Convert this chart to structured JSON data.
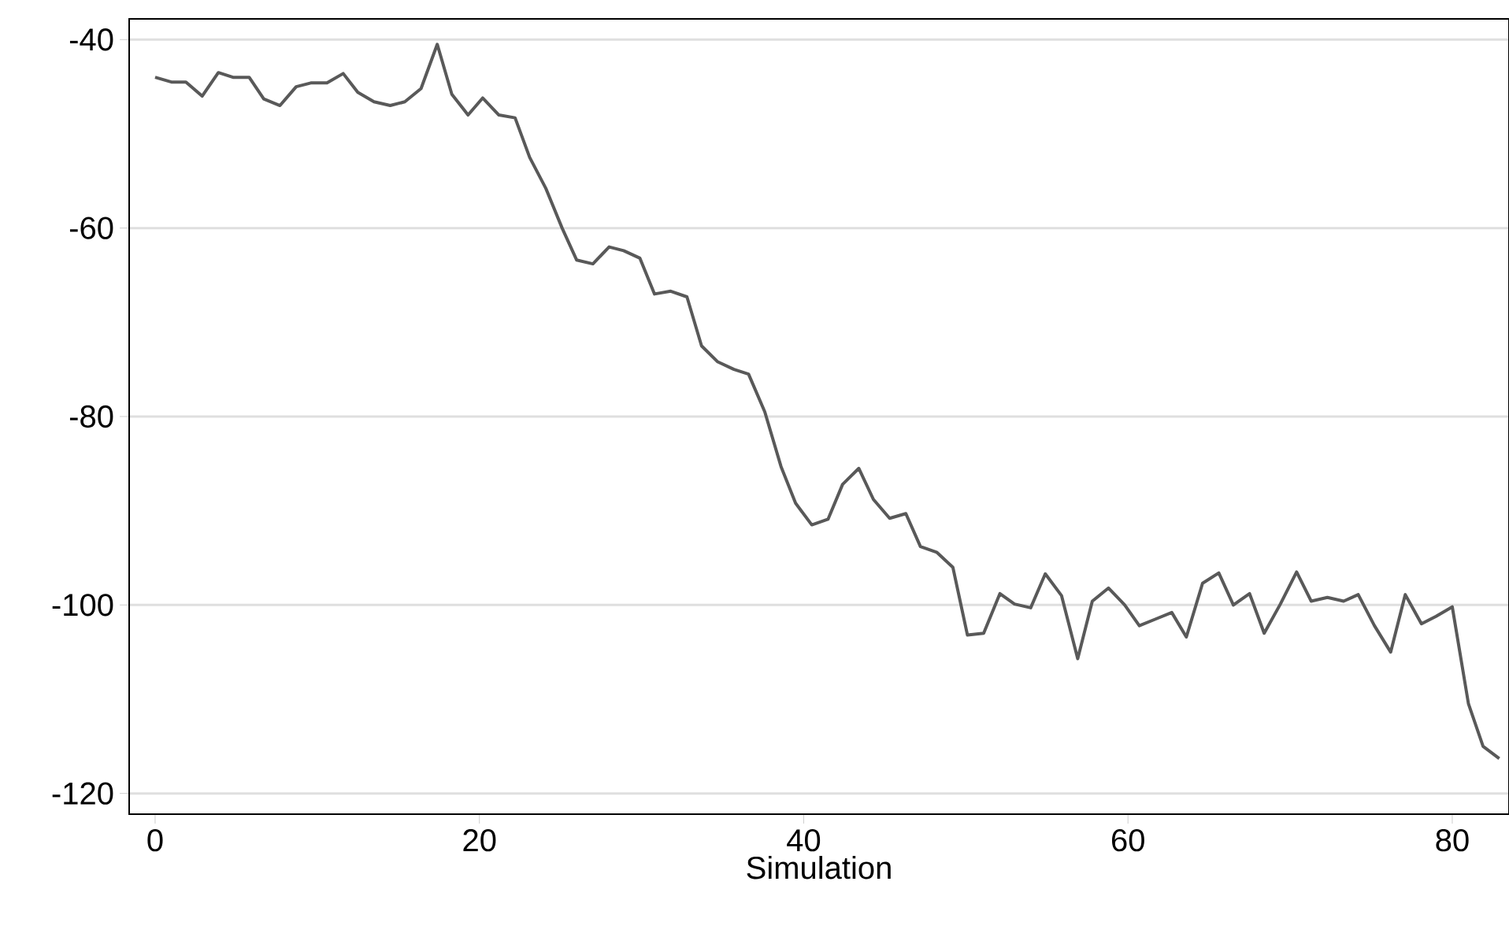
{
  "chart_data": {
    "type": "line",
    "xlabel": "Simulation",
    "x": [
      0,
      1.0,
      1.9,
      2.9,
      3.9,
      4.8,
      5.8,
      6.7,
      7.7,
      8.7,
      9.6,
      10.6,
      11.6,
      12.5,
      13.5,
      14.5,
      15.4,
      16.4,
      17.4,
      18.3,
      19.3,
      20.2,
      21.2,
      22.2,
      23.1,
      24.1,
      25.1,
      26.0,
      27.0,
      28.0,
      28.9,
      29.9,
      30.8,
      31.8,
      32.8,
      33.7,
      34.7,
      35.7,
      36.6,
      37.6,
      38.6,
      39.5,
      40.5,
      41.5,
      42.4,
      43.4,
      44.3,
      45.3,
      46.3,
      47.2,
      48.2,
      49.2,
      50.1,
      51.1,
      52.1,
      53.0,
      54.0,
      54.9,
      55.9,
      56.9,
      57.8,
      58.8,
      59.8,
      60.7,
      61.7,
      62.7,
      63.6,
      64.6,
      65.6,
      66.5,
      67.5,
      68.4,
      69.4,
      70.4,
      71.3,
      72.3,
      73.3,
      74.2,
      75.2,
      76.2,
      77.1,
      78.1,
      79.0,
      80.0,
      81.0,
      81.9,
      82.9
    ],
    "series": [
      {
        "color": "#595959",
        "values": [
          -44,
          -44.5,
          -44.5,
          -46,
          -43.5,
          -44,
          -44,
          -46.3,
          -47,
          -45,
          -44.6,
          -44.6,
          -43.6,
          -45.6,
          -46.6,
          -47,
          -46.6,
          -45.2,
          -40.5,
          -45.8,
          -48,
          -46.2,
          -48,
          -48.3,
          -52.5,
          -55.8,
          -60,
          -63.4,
          -63.8,
          -62,
          -62.4,
          -63.2,
          -67,
          -66.7,
          -67.3,
          -72.5,
          -74.2,
          -75,
          -75.5,
          -79.5,
          -85.3,
          -89.2,
          -91.5,
          -90.9,
          -87.2,
          -85.5,
          -88.8,
          -90.8,
          -90.3,
          -93.8,
          -94.4,
          -96,
          -103.2,
          -103,
          -98.8,
          -99.9,
          -100.3,
          -96.7,
          -99,
          -105.7,
          -99.6,
          -98.2,
          -100,
          -102.2,
          -101.5,
          -100.8,
          -103.4,
          -97.7,
          -96.6,
          -100,
          -98.8,
          -103,
          -99.9,
          -96.5,
          -99.6,
          -99.2,
          -99.6,
          -98.9,
          -102.2,
          -105,
          -98.9,
          -102,
          -101.2,
          -100.2,
          -110.5,
          -115,
          -116.3
        ]
      }
    ],
    "xlim": [
      -1.6,
      83.5
    ],
    "ylim": [
      -122.2,
      -37.8
    ],
    "xticks": [
      0,
      20,
      40,
      60,
      80
    ],
    "yticks": [
      -120,
      -100,
      -80,
      -60,
      -40
    ],
    "grid": "y",
    "marker": "none",
    "line_style": "solid"
  }
}
